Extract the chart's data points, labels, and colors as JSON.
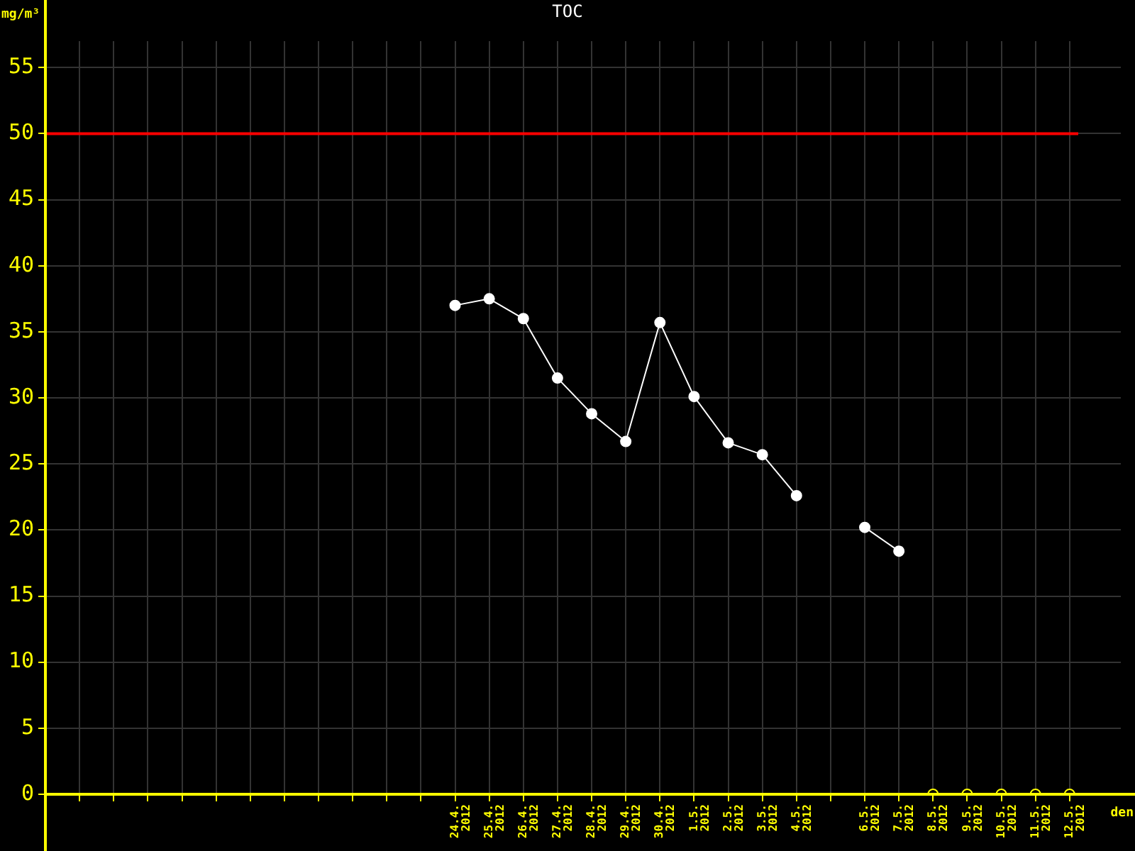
{
  "chart_data": {
    "type": "line",
    "title": "TOC",
    "xlabel": "den",
    "ylabel": "mg/m³",
    "categories": [
      null,
      null,
      null,
      null,
      null,
      null,
      null,
      null,
      null,
      null,
      null,
      "24.4. 2012",
      "25.4. 2012",
      "26.4. 2012",
      "27.4. 2012",
      "28.4. 2012",
      "29.4. 2012",
      "30.4. 2012",
      "1.5. 2012",
      "2.5. 2012",
      "3.5. 2012",
      "4.5. 2012",
      null,
      "6.5. 2012",
      "7.5. 2012",
      "8.5. 2012",
      "9.5. 2012",
      "10.5. 2012",
      "11.5. 2012",
      "12.5. 2012"
    ],
    "series": [
      {
        "type": "line",
        "color": "#ffffff",
        "marker": "circle",
        "values": [
          null,
          null,
          null,
          null,
          null,
          null,
          null,
          null,
          null,
          null,
          null,
          37.0,
          37.5,
          36.0,
          31.5,
          28.8,
          26.7,
          35.7,
          30.1,
          26.6,
          25.7,
          22.6,
          null,
          20.2,
          18.4,
          null,
          null,
          null,
          null,
          null
        ]
      },
      {
        "type": "scatter",
        "color": "#ffff00",
        "marker": "circle",
        "values": [
          null,
          null,
          null,
          null,
          null,
          null,
          null,
          null,
          null,
          null,
          null,
          null,
          null,
          null,
          null,
          null,
          null,
          null,
          null,
          null,
          null,
          null,
          null,
          null,
          null,
          0,
          0,
          0,
          0,
          0
        ]
      }
    ],
    "ylim": [
      0,
      57
    ],
    "yticks": [
      0,
      5,
      10,
      15,
      20,
      25,
      30,
      35,
      40,
      45,
      50,
      55
    ],
    "ref_lines": [
      {
        "axis": "y",
        "value": 50,
        "color": "#ff0000"
      }
    ],
    "grid": true,
    "legend": false
  }
}
